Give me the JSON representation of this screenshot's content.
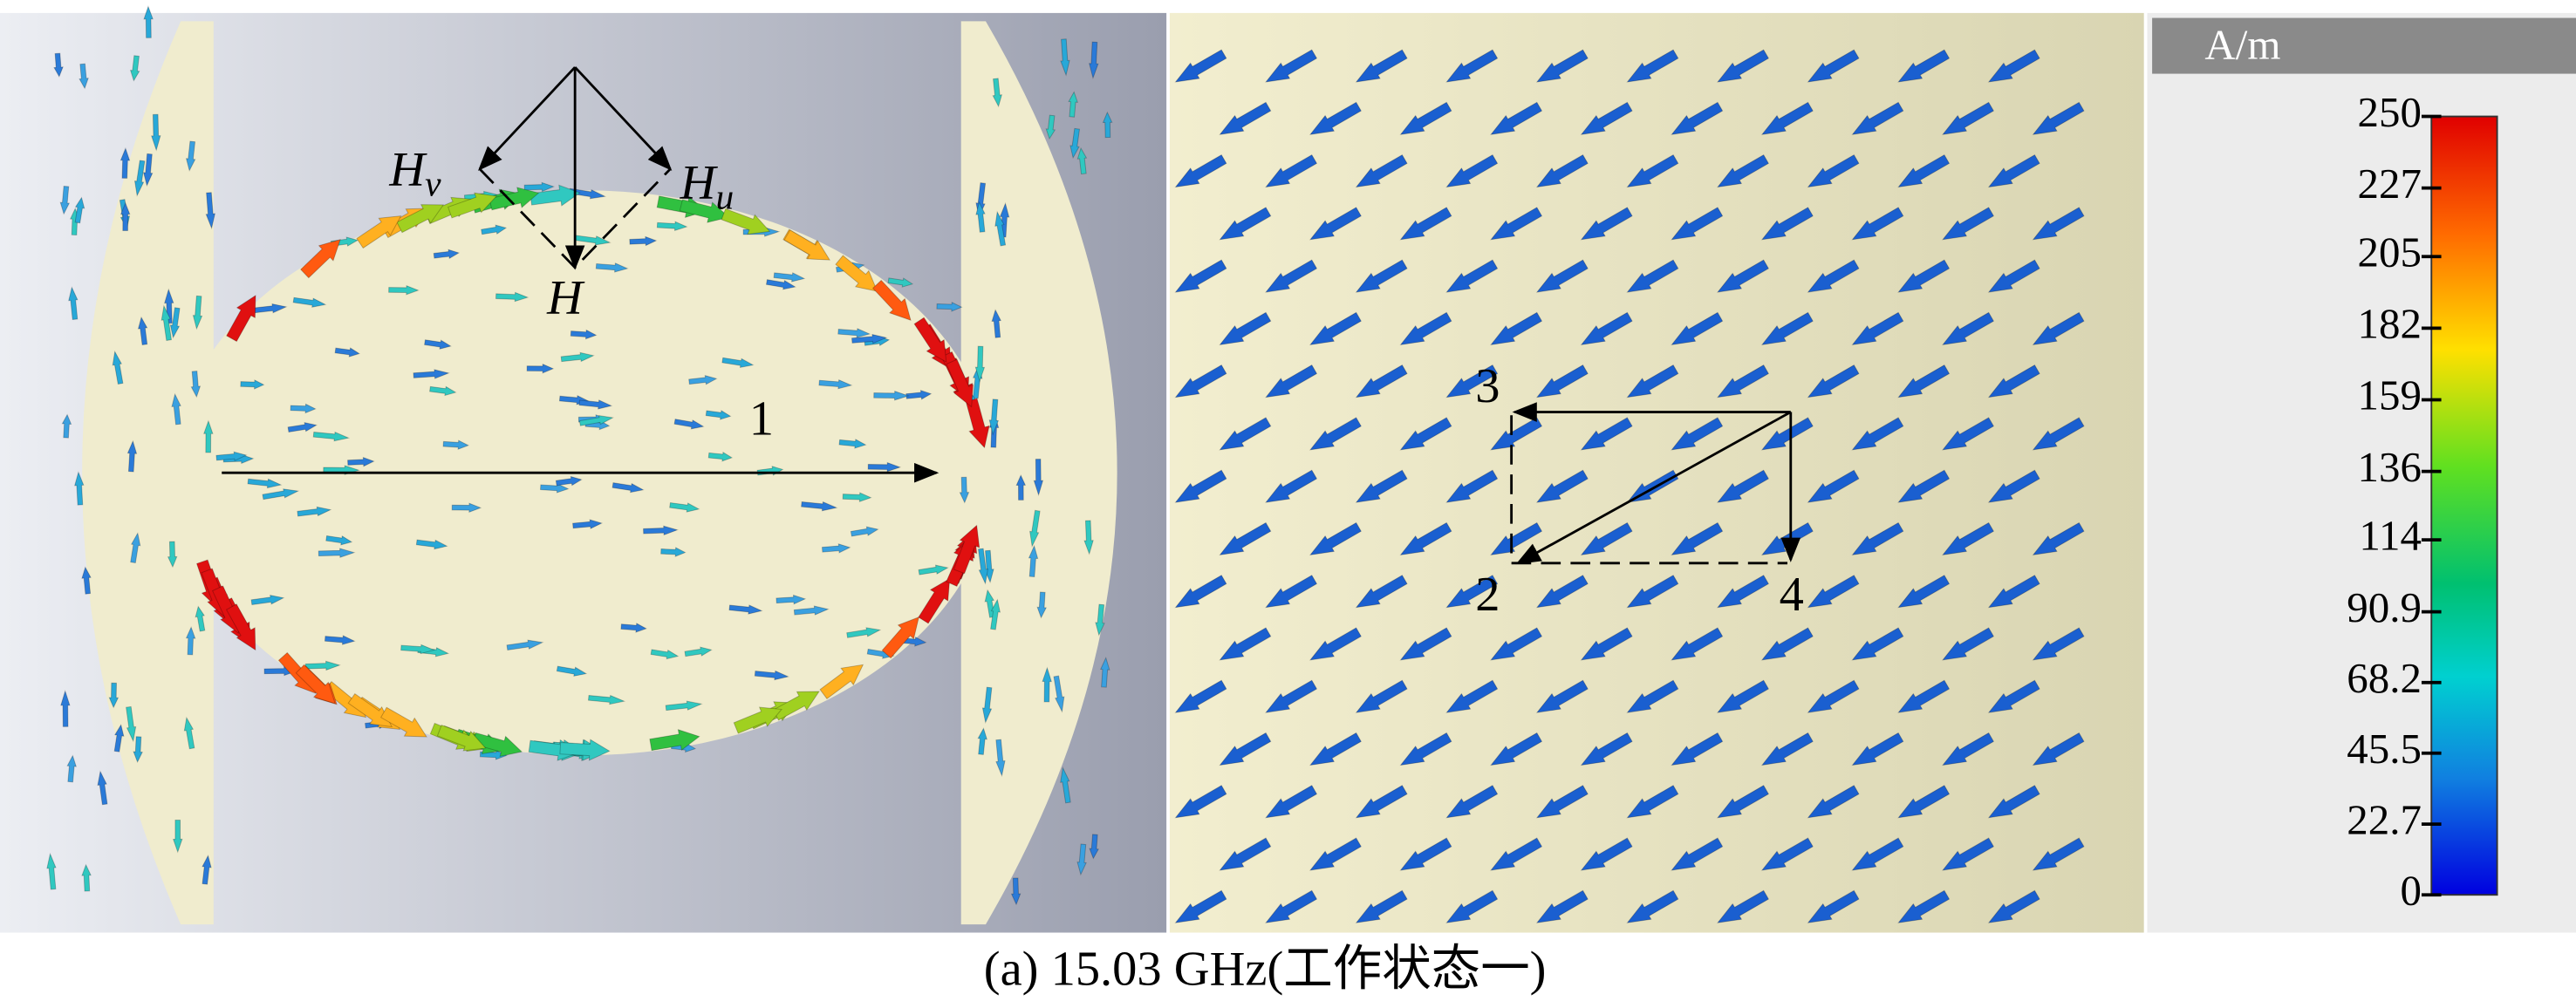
{
  "colorbar": {
    "unit": "A/m",
    "lim": [
      0,
      250
    ],
    "ticks": [
      250,
      227,
      205,
      182,
      159,
      136,
      114,
      90.9,
      68.2,
      45.5,
      22.7,
      0
    ]
  },
  "annotations": {
    "hv": {
      "base": "H",
      "sub": "v"
    },
    "hu": {
      "base": "H",
      "sub": "u"
    },
    "h": "H",
    "p1": "1",
    "p2": "2",
    "p3": "3",
    "p4": "4"
  },
  "caption": "(a) 15.03 GHz(工作状态一)"
}
